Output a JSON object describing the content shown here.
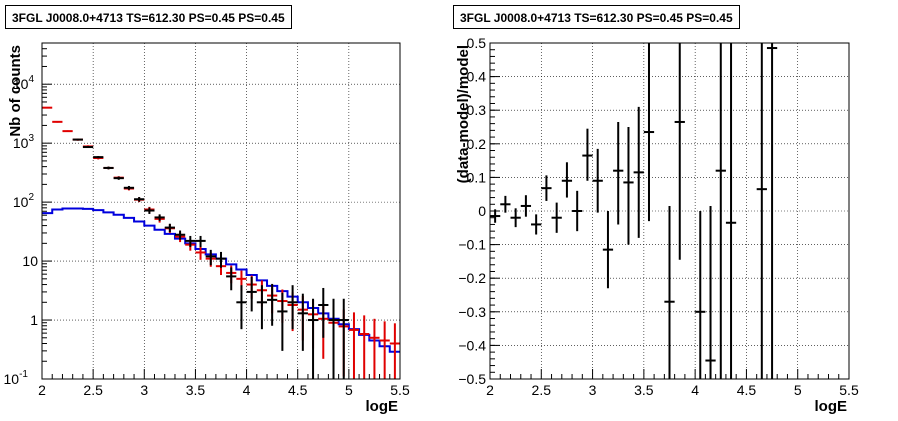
{
  "chart_data": [
    {
      "type": "step-histogram-with-errorbars",
      "title": "3FGL J0008.0+4713 TS=612.30 PS=0.45 PS=0.45",
      "xlabel": "logE",
      "ylabel": "Nb of counts",
      "xlim": [
        2,
        5.5
      ],
      "ylim": [
        0.1,
        50000
      ],
      "yscale": "log",
      "grid": true,
      "x_ticks": [
        "2",
        "2.5",
        "3",
        "3.5",
        "4",
        "4.5",
        "5",
        "5.5"
      ],
      "y_ticks": [
        "10^-1",
        "1",
        "10",
        "10^2",
        "10^3",
        "10^4"
      ],
      "bin_edges": [
        2.0,
        2.1,
        2.2,
        2.3,
        2.4,
        2.5,
        2.6,
        2.7,
        2.8,
        2.9,
        3.0,
        3.1,
        3.2,
        3.3,
        3.4,
        3.5,
        3.6,
        3.7,
        3.8,
        3.9,
        4.0,
        4.1,
        4.2,
        4.3,
        4.4,
        4.5,
        4.6,
        4.7,
        4.8,
        4.9,
        5.0,
        5.1,
        5.2,
        5.3,
        5.4,
        5.5
      ],
      "series": [
        {
          "kind": "model-red",
          "color": "#e00000",
          "values": [
            4000,
            2300,
            1600,
            1150,
            880,
            560,
            380,
            260,
            170,
            110,
            75,
            52,
            36,
            26,
            19,
            14,
            11,
            8.2,
            6.3,
            5.0,
            4.0,
            3.2,
            2.6,
            2.1,
            1.8,
            1.5,
            1.25,
            1.05,
            0.9,
            0.78,
            0.68,
            0.58,
            0.5,
            0.45,
            0.4
          ],
          "err_lo": [
            3900,
            2230,
            1550,
            1100,
            840,
            530,
            360,
            245,
            158,
            100,
            67,
            45,
            30,
            21,
            15,
            10.5,
            8,
            5.8,
            4.2,
            3.1,
            2.3,
            1.7,
            1.3,
            0.9,
            0.65,
            0.45,
            0.33,
            0.22,
            0.16,
            0.11,
            0.1,
            0.1,
            0.1,
            0.1,
            0.1
          ],
          "err_hi": [
            4100,
            2370,
            1650,
            1200,
            920,
            590,
            400,
            275,
            182,
            120,
            83,
            59,
            42,
            31,
            23,
            17.5,
            14,
            10.6,
            8.4,
            6.9,
            5.7,
            4.7,
            3.9,
            3.3,
            2.95,
            2.55,
            2.2,
            1.9,
            1.7,
            1.5,
            1.35,
            1.2,
            1.05,
            0.95,
            0.88
          ]
        },
        {
          "kind": "model-blue",
          "color": "#0000dd",
          "values": [
            65,
            75,
            78,
            78,
            77,
            73,
            67,
            61,
            54,
            47,
            40,
            34,
            29,
            24,
            20,
            16,
            13,
            11,
            8.8,
            7.2,
            5.8,
            4.7,
            3.8,
            3.1,
            2.5,
            2.0,
            1.6,
            1.3,
            1.05,
            0.85,
            0.7,
            0.56,
            0.45,
            0.36,
            0.29
          ]
        },
        {
          "kind": "data-black",
          "color": "#000000",
          "values": [
            null,
            null,
            null,
            1150,
            860,
            580,
            380,
            255,
            175,
            112,
            72,
            55,
            37,
            28,
            22,
            22,
            12,
            11,
            5.5,
            2,
            3,
            2,
            2.2,
            1.4,
            2,
            1.3,
            1,
            1.8,
            1,
            1,
            null,
            null,
            null,
            null,
            null
          ],
          "err_lo": [
            null,
            null,
            null,
            1115,
            830,
            556,
            360,
            239,
            162,
            102,
            63,
            48,
            31,
            23,
            17.3,
            17.3,
            8.5,
            7.7,
            3.2,
            0.7,
            1.4,
            0.7,
            0.8,
            0.3,
            0.7,
            0.3,
            0.1,
            0.5,
            0.1,
            0.1,
            null,
            null,
            null,
            null,
            null
          ],
          "err_hi": [
            null,
            null,
            null,
            1185,
            890,
            604,
            400,
            271,
            188,
            122,
            81,
            62,
            43,
            33,
            26.7,
            26.7,
            15.5,
            14.3,
            7.8,
            3.9,
            5.4,
            3.9,
            4.1,
            2.9,
            3.9,
            2.8,
            2.3,
            3.5,
            2.3,
            2.3,
            null,
            null,
            null,
            null,
            null
          ]
        }
      ]
    },
    {
      "type": "scatter-with-errorbars",
      "title": "3FGL J0008.0+4713 TS=612.30 PS=0.45 PS=0.45",
      "xlabel": "logE",
      "ylabel": "(data-model)/model",
      "xlim": [
        2,
        5.5
      ],
      "ylim": [
        -0.5,
        0.5
      ],
      "grid": true,
      "x_ticks": [
        "2",
        "2.5",
        "3",
        "3.5",
        "4",
        "4.5",
        "5",
        "5.5"
      ],
      "y_ticks": [
        "-0.5",
        "-0.4",
        "-0.3",
        "-0.2",
        "-0.1",
        "0",
        "0.1",
        "0.2",
        "0.3",
        "0.4",
        "0.5"
      ],
      "points": [
        {
          "x": 2.05,
          "y": -0.015,
          "ylo": -0.035,
          "yhi": 0.005
        },
        {
          "x": 2.15,
          "y": 0.02,
          "ylo": -0.005,
          "yhi": 0.045
        },
        {
          "x": 2.25,
          "y": -0.02,
          "ylo": -0.048,
          "yhi": 0.008
        },
        {
          "x": 2.35,
          "y": 0.015,
          "ylo": -0.017,
          "yhi": 0.047
        },
        {
          "x": 2.45,
          "y": -0.04,
          "ylo": -0.07,
          "yhi": -0.01
        },
        {
          "x": 2.55,
          "y": 0.068,
          "ylo": 0.03,
          "yhi": 0.106
        },
        {
          "x": 2.65,
          "y": -0.02,
          "ylo": -0.065,
          "yhi": 0.025
        },
        {
          "x": 2.75,
          "y": 0.09,
          "ylo": 0.04,
          "yhi": 0.145
        },
        {
          "x": 2.85,
          "y": 0.0,
          "ylo": -0.06,
          "yhi": 0.06
        },
        {
          "x": 2.95,
          "y": 0.165,
          "ylo": 0.09,
          "yhi": 0.245
        },
        {
          "x": 3.05,
          "y": 0.09,
          "ylo": -0.005,
          "yhi": 0.185
        },
        {
          "x": 3.15,
          "y": -0.115,
          "ylo": -0.23,
          "yhi": 0.0
        },
        {
          "x": 3.25,
          "y": 0.12,
          "ylo": -0.04,
          "yhi": 0.265
        },
        {
          "x": 3.35,
          "y": 0.085,
          "ylo": -0.1,
          "yhi": 0.25
        },
        {
          "x": 3.45,
          "y": 0.115,
          "ylo": -0.08,
          "yhi": 0.31
        },
        {
          "x": 3.55,
          "y": 0.235,
          "ylo": -0.03,
          "yhi": 0.5
        },
        {
          "x": 3.75,
          "y": -0.27,
          "ylo": -0.5,
          "yhi": 0.015
        },
        {
          "x": 3.85,
          "y": 0.265,
          "ylo": -0.145,
          "yhi": 0.5
        },
        {
          "x": 4.05,
          "y": -0.3,
          "ylo": -0.5,
          "yhi": 0.0
        },
        {
          "x": 4.15,
          "y": -0.445,
          "ylo": -0.5,
          "yhi": 0.015
        },
        {
          "x": 4.25,
          "y": 0.12,
          "ylo": -0.5,
          "yhi": 0.5
        },
        {
          "x": 4.35,
          "y": -0.035,
          "ylo": -0.5,
          "yhi": 0.5
        },
        {
          "x": 4.65,
          "y": 0.065,
          "ylo": -0.5,
          "yhi": 0.5
        },
        {
          "x": 4.75,
          "y": 0.485,
          "ylo": -0.5,
          "yhi": 0.5
        }
      ]
    }
  ]
}
